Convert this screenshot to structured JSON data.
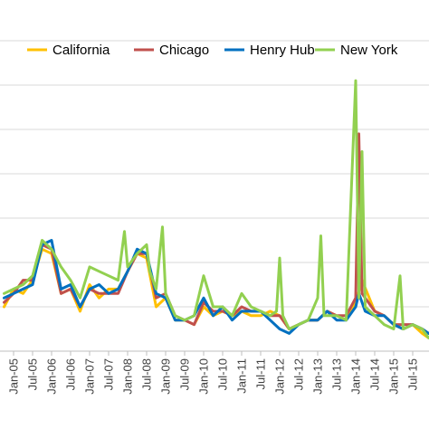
{
  "chart_data": {
    "type": "line",
    "title": "",
    "xlabel": "",
    "ylabel": "",
    "ylim": [
      0,
      7
    ],
    "y_gridlines": [
      0,
      1,
      2,
      3,
      4,
      5,
      6,
      7
    ],
    "grid": "horizontal",
    "legend_position": "top",
    "x_tick_labels": [
      "Jan-05",
      "Jul-05",
      "Jan-06",
      "Jul-06",
      "Jan-07",
      "Jul-07",
      "Jan-08",
      "Jul-08",
      "Jan-09",
      "Jul-09",
      "Jan-10",
      "Jul-10",
      "Jan-11",
      "Jul-11",
      "Jan-12",
      "Jul-12",
      "Jan-13",
      "Jul-13",
      "Jan-14",
      "Jul-14",
      "Jan-15",
      "Jul-15"
    ],
    "x_range": [
      "Oct-04",
      "Dec-15"
    ],
    "series": [
      {
        "name": "California",
        "color": "#ffc000",
        "points": [
          [
            "Oct-04",
            1.0
          ],
          [
            "Jan-05",
            1.4
          ],
          [
            "Apr-05",
            1.3
          ],
          [
            "Jul-05",
            1.6
          ],
          [
            "Oct-05",
            2.3
          ],
          [
            "Jan-06",
            2.2
          ],
          [
            "Apr-06",
            1.3
          ],
          [
            "Jul-06",
            1.4
          ],
          [
            "Oct-06",
            0.9
          ],
          [
            "Jan-07",
            1.5
          ],
          [
            "Apr-07",
            1.2
          ],
          [
            "Jul-07",
            1.4
          ],
          [
            "Oct-07",
            1.4
          ],
          [
            "Jan-08",
            1.8
          ],
          [
            "Apr-08",
            2.2
          ],
          [
            "Jul-08",
            2.1
          ],
          [
            "Oct-08",
            1.0
          ],
          [
            "Jan-09",
            1.2
          ],
          [
            "Apr-09",
            0.7
          ],
          [
            "Jul-09",
            0.7
          ],
          [
            "Oct-09",
            0.6
          ],
          [
            "Jan-10",
            1.0
          ],
          [
            "Apr-10",
            0.8
          ],
          [
            "Jul-10",
            0.9
          ],
          [
            "Oct-10",
            0.8
          ],
          [
            "Jan-11",
            0.9
          ],
          [
            "Apr-11",
            0.8
          ],
          [
            "Jul-11",
            0.8
          ],
          [
            "Oct-11",
            0.9
          ],
          [
            "Jan-12",
            0.8
          ],
          [
            "Apr-12",
            0.5
          ],
          [
            "Jul-12",
            0.6
          ],
          [
            "Oct-12",
            0.7
          ],
          [
            "Jan-13",
            0.7
          ],
          [
            "Apr-13",
            0.9
          ],
          [
            "Jul-13",
            0.8
          ],
          [
            "Oct-13",
            0.7
          ],
          [
            "Jan-14",
            1.1
          ],
          [
            "Mar-14",
            1.6
          ],
          [
            "Jul-14",
            0.9
          ],
          [
            "Oct-14",
            0.8
          ],
          [
            "Jan-15",
            0.6
          ],
          [
            "Apr-15",
            0.5
          ],
          [
            "Jul-15",
            0.6
          ],
          [
            "Oct-15",
            0.4
          ],
          [
            "Dec-15",
            0.3
          ]
        ]
      },
      {
        "name": "Chicago",
        "color": "#c0504d",
        "points": [
          [
            "Oct-04",
            1.1
          ],
          [
            "Jan-05",
            1.3
          ],
          [
            "Apr-05",
            1.6
          ],
          [
            "Jul-05",
            1.6
          ],
          [
            "Oct-05",
            2.4
          ],
          [
            "Jan-06",
            2.3
          ],
          [
            "Apr-06",
            1.3
          ],
          [
            "Jul-06",
            1.4
          ],
          [
            "Oct-06",
            1.0
          ],
          [
            "Jan-07",
            1.4
          ],
          [
            "Apr-07",
            1.3
          ],
          [
            "Jul-07",
            1.3
          ],
          [
            "Oct-07",
            1.3
          ],
          [
            "Jan-08",
            1.8
          ],
          [
            "Apr-08",
            2.2
          ],
          [
            "Jul-08",
            2.2
          ],
          [
            "Oct-08",
            1.2
          ],
          [
            "Jan-09",
            1.3
          ],
          [
            "Apr-09",
            0.8
          ],
          [
            "Jul-09",
            0.7
          ],
          [
            "Oct-09",
            0.6
          ],
          [
            "Jan-10",
            1.1
          ],
          [
            "Apr-10",
            0.9
          ],
          [
            "Jul-10",
            0.9
          ],
          [
            "Oct-10",
            0.8
          ],
          [
            "Jan-11",
            1.0
          ],
          [
            "Apr-11",
            0.9
          ],
          [
            "Jul-11",
            0.9
          ],
          [
            "Oct-11",
            0.8
          ],
          [
            "Jan-12",
            0.8
          ],
          [
            "Apr-12",
            0.5
          ],
          [
            "Jul-12",
            0.6
          ],
          [
            "Oct-12",
            0.7
          ],
          [
            "Jan-13",
            0.7
          ],
          [
            "Apr-13",
            0.9
          ],
          [
            "Jul-13",
            0.8
          ],
          [
            "Oct-13",
            0.8
          ],
          [
            "Jan-14",
            1.2
          ],
          [
            "Feb-14",
            4.9
          ],
          [
            "Mar-14",
            1.3
          ],
          [
            "Jul-14",
            0.9
          ],
          [
            "Oct-14",
            0.8
          ],
          [
            "Jan-15",
            0.6
          ],
          [
            "Apr-15",
            0.6
          ],
          [
            "Jul-15",
            0.6
          ],
          [
            "Oct-15",
            0.5
          ],
          [
            "Dec-15",
            0.4
          ]
        ]
      },
      {
        "name": "Henry Hub",
        "color": "#0070c0",
        "points": [
          [
            "Oct-04",
            1.2
          ],
          [
            "Jan-05",
            1.3
          ],
          [
            "Apr-05",
            1.4
          ],
          [
            "Jul-05",
            1.5
          ],
          [
            "Oct-05",
            2.4
          ],
          [
            "Jan-06",
            2.5
          ],
          [
            "Apr-06",
            1.4
          ],
          [
            "Jul-06",
            1.5
          ],
          [
            "Oct-06",
            1.0
          ],
          [
            "Jan-07",
            1.4
          ],
          [
            "Apr-07",
            1.5
          ],
          [
            "Jul-07",
            1.3
          ],
          [
            "Oct-07",
            1.4
          ],
          [
            "Jan-08",
            1.8
          ],
          [
            "Apr-08",
            2.3
          ],
          [
            "Jul-08",
            2.2
          ],
          [
            "Oct-08",
            1.3
          ],
          [
            "Jan-09",
            1.2
          ],
          [
            "Apr-09",
            0.7
          ],
          [
            "Jul-09",
            0.7
          ],
          [
            "Oct-09",
            0.8
          ],
          [
            "Jan-10",
            1.2
          ],
          [
            "Apr-10",
            0.8
          ],
          [
            "Jul-10",
            1.0
          ],
          [
            "Oct-10",
            0.7
          ],
          [
            "Jan-11",
            0.9
          ],
          [
            "Apr-11",
            0.9
          ],
          [
            "Jul-11",
            0.9
          ],
          [
            "Oct-11",
            0.7
          ],
          [
            "Jan-12",
            0.5
          ],
          [
            "Apr-12",
            0.4
          ],
          [
            "Jul-12",
            0.6
          ],
          [
            "Oct-12",
            0.7
          ],
          [
            "Jan-13",
            0.7
          ],
          [
            "Apr-13",
            0.9
          ],
          [
            "Jul-13",
            0.7
          ],
          [
            "Oct-13",
            0.7
          ],
          [
            "Jan-14",
            1.0
          ],
          [
            "Feb-14",
            1.3
          ],
          [
            "Apr-14",
            0.9
          ],
          [
            "Jul-14",
            0.8
          ],
          [
            "Oct-14",
            0.8
          ],
          [
            "Jan-15",
            0.6
          ],
          [
            "Apr-15",
            0.5
          ],
          [
            "Jul-15",
            0.6
          ],
          [
            "Oct-15",
            0.5
          ],
          [
            "Dec-15",
            0.4
          ]
        ]
      },
      {
        "name": "New York",
        "color": "#92d050",
        "points": [
          [
            "Oct-04",
            1.3
          ],
          [
            "Jan-05",
            1.4
          ],
          [
            "Apr-05",
            1.5
          ],
          [
            "Jul-05",
            1.7
          ],
          [
            "Oct-05",
            2.5
          ],
          [
            "Jan-06",
            2.3
          ],
          [
            "Apr-06",
            1.9
          ],
          [
            "Jul-06",
            1.6
          ],
          [
            "Oct-06",
            1.2
          ],
          [
            "Jan-07",
            1.9
          ],
          [
            "Apr-07",
            1.8
          ],
          [
            "Jul-07",
            1.7
          ],
          [
            "Oct-07",
            1.6
          ],
          [
            "Dec-07",
            2.7
          ],
          [
            "Jan-08",
            1.9
          ],
          [
            "Apr-08",
            2.2
          ],
          [
            "Jul-08",
            2.4
          ],
          [
            "Aug-08",
            1.8
          ],
          [
            "Oct-08",
            1.4
          ],
          [
            "Dec-08",
            2.8
          ],
          [
            "Jan-09",
            1.3
          ],
          [
            "Apr-09",
            0.8
          ],
          [
            "Jul-09",
            0.7
          ],
          [
            "Oct-09",
            0.8
          ],
          [
            "Jan-10",
            1.7
          ],
          [
            "Apr-10",
            1.0
          ],
          [
            "Jul-10",
            1.0
          ],
          [
            "Oct-10",
            0.8
          ],
          [
            "Jan-11",
            1.3
          ],
          [
            "Apr-11",
            1.0
          ],
          [
            "Jul-11",
            0.9
          ],
          [
            "Oct-11",
            0.8
          ],
          [
            "Dec-11",
            0.9
          ],
          [
            "Jan-12",
            2.1
          ],
          [
            "Feb-12",
            0.8
          ],
          [
            "Apr-12",
            0.5
          ],
          [
            "Jul-12",
            0.6
          ],
          [
            "Oct-12",
            0.7
          ],
          [
            "Jan-13",
            1.2
          ],
          [
            "Feb-13",
            2.6
          ],
          [
            "Mar-13",
            0.8
          ],
          [
            "Jul-13",
            0.8
          ],
          [
            "Oct-13",
            0.7
          ],
          [
            "Jan-14",
            6.1
          ],
          [
            "Feb-14",
            1.2
          ],
          [
            "Mar-14",
            4.5
          ],
          [
            "Apr-14",
            1.0
          ],
          [
            "Jul-14",
            0.8
          ],
          [
            "Oct-14",
            0.6
          ],
          [
            "Jan-15",
            0.5
          ],
          [
            "Mar-15",
            1.7
          ],
          [
            "Apr-15",
            0.5
          ],
          [
            "Jul-15",
            0.6
          ],
          [
            "Oct-15",
            0.5
          ],
          [
            "Dec-15",
            0.3
          ]
        ]
      }
    ]
  }
}
